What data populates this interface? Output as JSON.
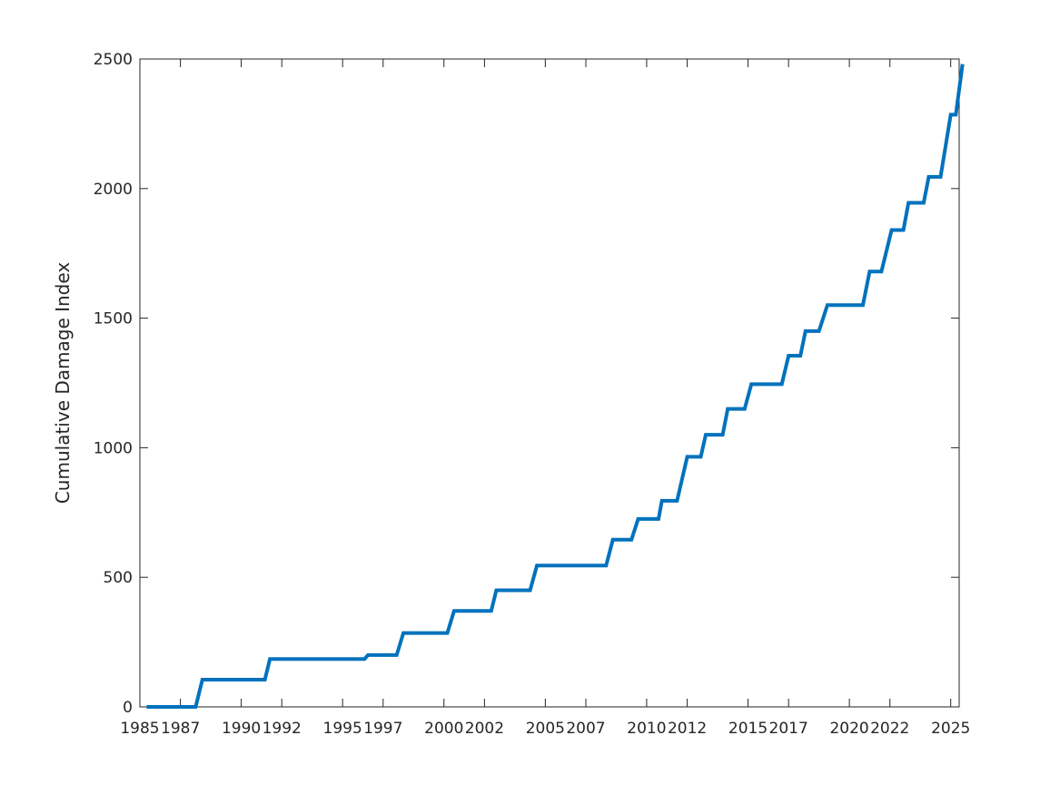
{
  "chart_data": {
    "type": "line",
    "title": "",
    "xlabel": "",
    "ylabel": "Cumulative Damage Index",
    "xlim": [
      "1985-01",
      "2025-06"
    ],
    "ylim": [
      0,
      2500
    ],
    "x_ticks": [
      "1985",
      "1987",
      "1990",
      "1992",
      "1995",
      "1997",
      "2000",
      "2002",
      "2005",
      "2007",
      "2010",
      "2012",
      "2015",
      "2017",
      "2020",
      "2022",
      "2025"
    ],
    "y_ticks": [
      "0",
      "500",
      "1000",
      "1500",
      "2000",
      "2500"
    ],
    "grid": false,
    "colors": {
      "series": "#0072BD",
      "axis": "#262626"
    },
    "series": [
      {
        "x": [
          "1985-05",
          "1987-10",
          "1988-02",
          "1991-03",
          "1991-06",
          "1996-02",
          "1996-04",
          "1997-09",
          "1998-01",
          "2000-03",
          "2000-07",
          "2002-05",
          "2002-08",
          "2004-04",
          "2004-08",
          "2008-01",
          "2008-05",
          "2009-04",
          "2009-08",
          "2010-08",
          "2010-10",
          "2011-07",
          "2012-01",
          "2012-09",
          "2012-12",
          "2013-10",
          "2014-01",
          "2014-11",
          "2015-03",
          "2016-09",
          "2017-01",
          "2017-08",
          "2017-11",
          "2018-07",
          "2018-12",
          "2020-09",
          "2021-01",
          "2021-08",
          "2022-02",
          "2022-09",
          "2022-12",
          "2023-09",
          "2023-12",
          "2024-07",
          "2025-01",
          "2025-04",
          "2025-08"
        ],
        "y": [
          0,
          0,
          105,
          105,
          185,
          185,
          200,
          200,
          285,
          285,
          370,
          370,
          450,
          450,
          545,
          545,
          645,
          645,
          725,
          725,
          795,
          795,
          965,
          965,
          1050,
          1050,
          1150,
          1150,
          1245,
          1245,
          1355,
          1355,
          1450,
          1450,
          1550,
          1550,
          1680,
          1680,
          1840,
          1840,
          1945,
          1945,
          2045,
          2045,
          2285,
          2285,
          2480
        ]
      }
    ]
  }
}
